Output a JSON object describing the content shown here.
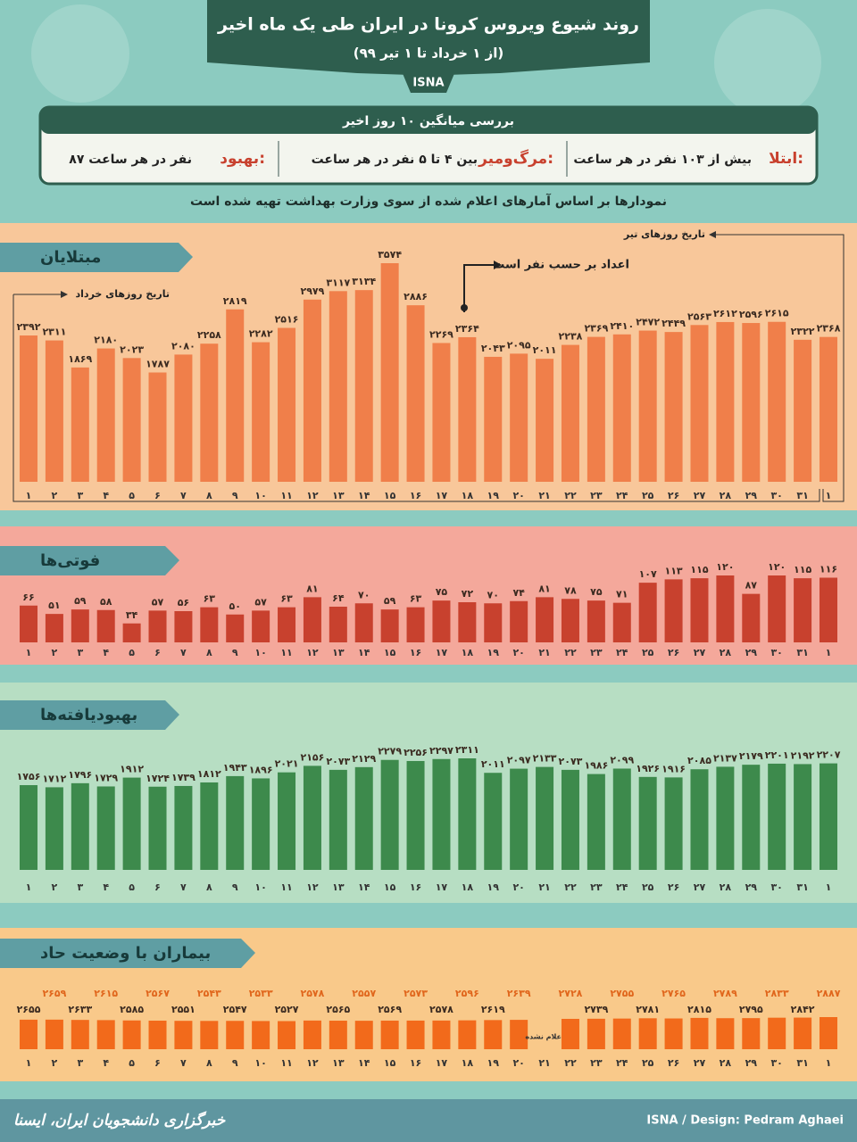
{
  "header": {
    "title": "روند شیوع ویروس کرونا در ایران طی یک ماه اخیر",
    "subtitle": "(از ۱ خرداد تا ۱ تیر ۹۹)",
    "source": "ISNA"
  },
  "summary": {
    "title": "بررسی میانگین ۱۰ روز اخیر",
    "items": [
      {
        "label": "ابتلا:",
        "text": "بیش از ۱۰۳ نفر در هر ساعت"
      },
      {
        "label": "مرگ‌ومیر:",
        "text": "بین ۴ تا ۵ نفر در هر ساعت"
      },
      {
        "label": "بهبود:",
        "text": "۸۷ نفر در هر ساعت"
      }
    ]
  },
  "note": "نمودارها بر اساس آمارهای اعلام شده از سوی وزارت بهداشت تهیه شده است",
  "chart_data": [
    {
      "type": "bar",
      "title": "مبتلایان",
      "color": "#f07f4a",
      "annotations": [
        "تاریخ روزهای خرداد",
        "تاریخ روزهای تیر",
        "اعداد بر حسب نفر است"
      ],
      "categories": [
        "۱",
        "۲",
        "۳",
        "۴",
        "۵",
        "۶",
        "۷",
        "۸",
        "۹",
        "۱۰",
        "۱۱",
        "۱۲",
        "۱۳",
        "۱۴",
        "۱۵",
        "۱۶",
        "۱۷",
        "۱۸",
        "۱۹",
        "۲۰",
        "۲۱",
        "۲۲",
        "۲۳",
        "۲۴",
        "۲۵",
        "۲۶",
        "۲۷",
        "۲۸",
        "۲۹",
        "۳۰",
        "۳۱",
        "۱"
      ],
      "values": [
        2392,
        2311,
        1869,
        2180,
        2023,
        1787,
        2080,
        2258,
        2819,
        2282,
        2516,
        2979,
        3117,
        3134,
        3574,
        2886,
        2269,
        2364,
        2043,
        2095,
        2011,
        2238,
        2369,
        2410,
        2472,
        2449,
        2563,
        2612,
        2596,
        2615,
        2322,
        2368
      ],
      "value_labels": [
        "۲۳۹۲",
        "۲۳۱۱",
        "۱۸۶۹",
        "۲۱۸۰",
        "۲۰۲۳",
        "۱۷۸۷",
        "۲۰۸۰",
        "۲۲۵۸",
        "۲۸۱۹",
        "۲۲۸۲",
        "۲۵۱۶",
        "۲۹۷۹",
        "۳۱۱۷",
        "۳۱۳۴",
        "۳۵۷۴",
        "۲۸۸۶",
        "۲۲۶۹",
        "۲۳۶۴",
        "۲۰۴۳",
        "۲۰۹۵",
        "۲۰۱۱",
        "۲۲۳۸",
        "۲۳۶۹",
        "۲۴۱۰",
        "۲۴۷۲",
        "۲۴۴۹",
        "۲۵۶۳",
        "۲۶۱۲",
        "۲۵۹۶",
        "۲۶۱۵",
        "۲۳۲۲",
        "۲۳۶۸"
      ]
    },
    {
      "type": "bar",
      "title": "فوتی‌ها",
      "color": "#c8412e",
      "categories": [
        "۱",
        "۲",
        "۳",
        "۴",
        "۵",
        "۶",
        "۷",
        "۸",
        "۹",
        "۱۰",
        "۱۱",
        "۱۲",
        "۱۳",
        "۱۴",
        "۱۵",
        "۱۶",
        "۱۷",
        "۱۸",
        "۱۹",
        "۲۰",
        "۲۱",
        "۲۲",
        "۲۳",
        "۲۴",
        "۲۵",
        "۲۶",
        "۲۷",
        "۲۸",
        "۲۹",
        "۳۰",
        "۳۱",
        "۱"
      ],
      "values": [
        66,
        51,
        59,
        58,
        34,
        57,
        56,
        63,
        50,
        57,
        63,
        81,
        64,
        70,
        59,
        63,
        75,
        72,
        70,
        74,
        81,
        78,
        75,
        71,
        107,
        113,
        115,
        120,
        87,
        120,
        115,
        116
      ],
      "value_labels": [
        "۶۶",
        "۵۱",
        "۵۹",
        "۵۸",
        "۳۴",
        "۵۷",
        "۵۶",
        "۶۳",
        "۵۰",
        "۵۷",
        "۶۳",
        "۸۱",
        "۶۴",
        "۷۰",
        "۵۹",
        "۶۳",
        "۷۵",
        "۷۲",
        "۷۰",
        "۷۴",
        "۸۱",
        "۷۸",
        "۷۵",
        "۷۱",
        "۱۰۷",
        "۱۱۳",
        "۱۱۵",
        "۱۲۰",
        "۸۷",
        "۱۲۰",
        "۱۱۵",
        "۱۱۶"
      ]
    },
    {
      "type": "bar",
      "title": "بهبودیافته‌ها",
      "color": "#3d8a4c",
      "categories": [
        "۱",
        "۲",
        "۳",
        "۴",
        "۵",
        "۶",
        "۷",
        "۸",
        "۹",
        "۱۰",
        "۱۱",
        "۱۲",
        "۱۳",
        "۱۴",
        "۱۵",
        "۱۶",
        "۱۷",
        "۱۸",
        "۱۹",
        "۲۰",
        "۲۱",
        "۲۲",
        "۲۳",
        "۲۴",
        "۲۵",
        "۲۶",
        "۲۷",
        "۲۸",
        "۲۹",
        "۳۰",
        "۳۱",
        "۱"
      ],
      "values": [
        1756,
        1712,
        1796,
        1729,
        1912,
        1724,
        1739,
        1812,
        1943,
        1896,
        2021,
        2156,
        2073,
        2129,
        2279,
        2256,
        2297,
        2311,
        2011,
        2097,
        2133,
        2073,
        1986,
        2099,
        1926,
        1916,
        2085,
        2137,
        2179,
        2201,
        2192,
        2207
      ],
      "value_labels": [
        "۱۷۵۶",
        "۱۷۱۲",
        "۱۷۹۶",
        "۱۷۲۹",
        "۱۹۱۲",
        "۱۷۲۴",
        "۱۷۳۹",
        "۱۸۱۲",
        "۱۹۴۳",
        "۱۸۹۶",
        "۲۰۲۱",
        "۲۱۵۶",
        "۲۰۷۳",
        "۲۱۲۹",
        "۲۲۷۹",
        "۲۲۵۶",
        "۲۲۹۷",
        "۲۳۱۱",
        "۲۰۱۱",
        "۲۰۹۷",
        "۲۱۳۳",
        "۲۰۷۳",
        "۱۹۸۶",
        "۲۰۹۹",
        "۱۹۲۶",
        "۱۹۱۶",
        "۲۰۸۵",
        "۲۱۳۷",
        "۲۱۷۹",
        "۲۲۰۱",
        "۲۱۹۲",
        "۲۲۰۷"
      ]
    },
    {
      "type": "bar",
      "title": "بیماران با وضعیت حاد",
      "color": "#f26a1b",
      "categories": [
        "۱",
        "۲",
        "۳",
        "۴",
        "۵",
        "۶",
        "۷",
        "۸",
        "۹",
        "۱۰",
        "۱۱",
        "۱۲",
        "۱۳",
        "۱۴",
        "۱۵",
        "۱۶",
        "۱۷",
        "۱۸",
        "۱۹",
        "۲۰",
        "۲۱",
        "۲۲",
        "۲۳",
        "۲۴",
        "۲۵",
        "۲۶",
        "۲۷",
        "۲۸",
        "۲۹",
        "۳۰",
        "۳۱",
        "۱"
      ],
      "values": [
        2655,
        2659,
        2633,
        2615,
        2585,
        2567,
        2551,
        2543,
        2547,
        2533,
        2527,
        2578,
        2565,
        2557,
        2569,
        2573,
        2578,
        2596,
        2619,
        2639,
        null,
        2728,
        2739,
        2755,
        2781,
        2765,
        2815,
        2789,
        2795,
        2833,
        2842,
        2887
      ],
      "value_labels": [
        "۲۶۵۵",
        "۲۶۵۹",
        "۲۶۳۳",
        "۲۶۱۵",
        "۲۵۸۵",
        "۲۵۶۷",
        "۲۵۵۱",
        "۲۵۴۳",
        "۲۵۴۷",
        "۲۵۳۳",
        "۲۵۲۷",
        "۲۵۷۸",
        "۲۵۶۵",
        "۲۵۵۷",
        "۲۵۶۹",
        "۲۵۷۳",
        "۲۵۷۸",
        "۲۵۹۶",
        "۲۶۱۹",
        "۲۶۳۹",
        "اعلام نشده",
        "۲۷۲۸",
        "۲۷۳۹",
        "۲۷۵۵",
        "۲۷۸۱",
        "۲۷۶۵",
        "۲۸۱۵",
        "۲۷۸۹",
        "۲۷۹۵",
        "۲۸۳۳",
        "۲۸۴۲",
        "۲۸۸۷"
      ]
    }
  ],
  "footer": {
    "credit": "ISNA / Design: Pedram Aghaei",
    "agency": "خبرگزاری دانشجویان ایران، ایسنا"
  }
}
